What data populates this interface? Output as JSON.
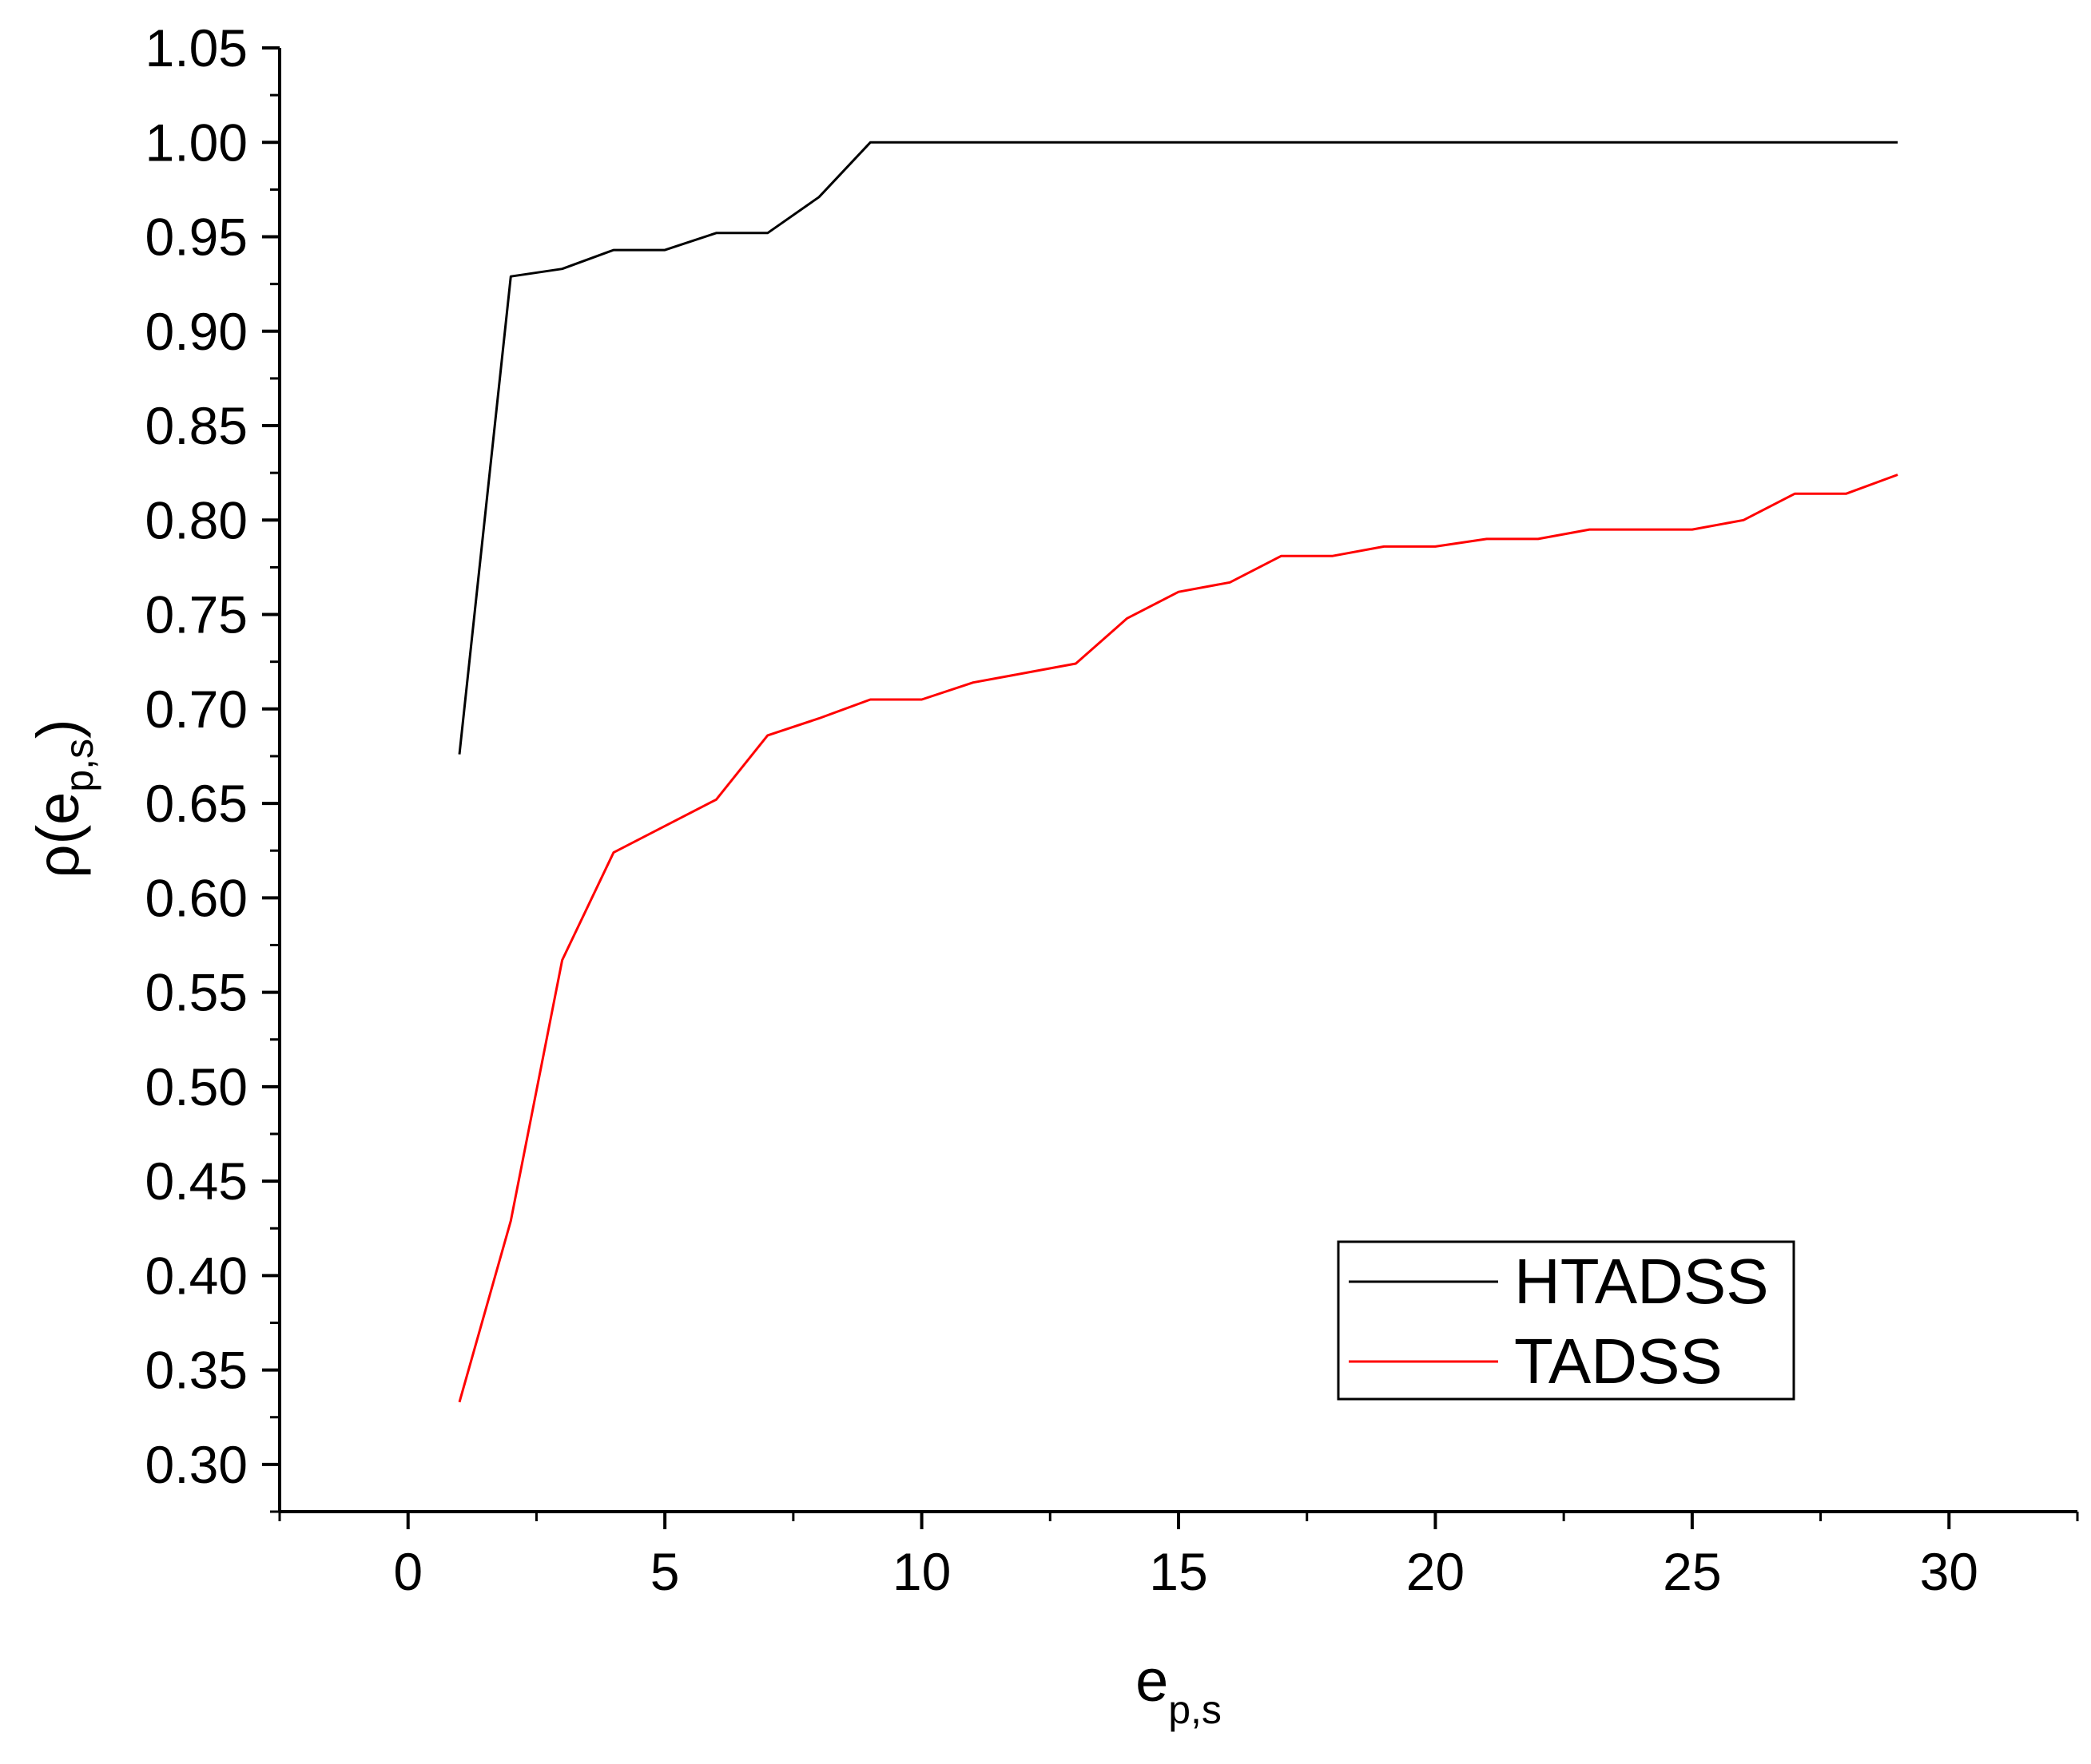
{
  "chart_data": {
    "type": "line",
    "title": "",
    "xlabel": {
      "base": "e",
      "sub": "p,s"
    },
    "ylabel": {
      "prefix": "ρ(e",
      "sub": "p,s",
      "suffix": ")"
    },
    "xlim": [
      -2.5,
      32.5
    ],
    "ylim": [
      0.275,
      1.05
    ],
    "xticks": [
      0,
      5,
      10,
      15,
      20,
      25,
      30
    ],
    "xtick_labels": [
      "0",
      "5",
      "10",
      "15",
      "20",
      "25",
      "30"
    ],
    "yticks": [
      0.3,
      0.35,
      0.4,
      0.45,
      0.5,
      0.55,
      0.6,
      0.65,
      0.7,
      0.75,
      0.8,
      0.85,
      0.9,
      0.95,
      1.0,
      1.05
    ],
    "ytick_labels": [
      "0.30",
      "0.35",
      "0.40",
      "0.45",
      "0.50",
      "0.55",
      "0.60",
      "0.65",
      "0.70",
      "0.75",
      "0.80",
      "0.85",
      "0.90",
      "0.95",
      "1.00",
      "1.05"
    ],
    "grid": false,
    "legend_position": "bottom-right",
    "x": [
      1,
      2,
      3,
      4,
      5,
      6,
      7,
      8,
      9,
      10,
      11,
      12,
      13,
      14,
      15,
      16,
      17,
      18,
      19,
      20,
      21,
      22,
      23,
      24,
      25,
      26,
      27,
      28,
      29
    ],
    "series": [
      {
        "name": "HTADSS",
        "color": "#000000",
        "values": [
          0.676,
          0.929,
          0.933,
          0.943,
          0.943,
          0.952,
          0.952,
          0.971,
          1.0,
          1.0,
          1.0,
          1.0,
          1.0,
          1.0,
          1.0,
          1.0,
          1.0,
          1.0,
          1.0,
          1.0,
          1.0,
          1.0,
          1.0,
          1.0,
          1.0,
          1.0,
          1.0,
          1.0,
          1.0
        ]
      },
      {
        "name": "TADSS",
        "color": "#ff0000",
        "values": [
          0.333,
          0.429,
          0.567,
          0.624,
          0.638,
          0.652,
          0.686,
          0.695,
          0.705,
          0.705,
          0.714,
          0.719,
          0.724,
          0.748,
          0.762,
          0.767,
          0.781,
          0.781,
          0.786,
          0.786,
          0.79,
          0.79,
          0.795,
          0.795,
          0.795,
          0.8,
          0.814,
          0.814,
          0.824
        ]
      }
    ]
  }
}
